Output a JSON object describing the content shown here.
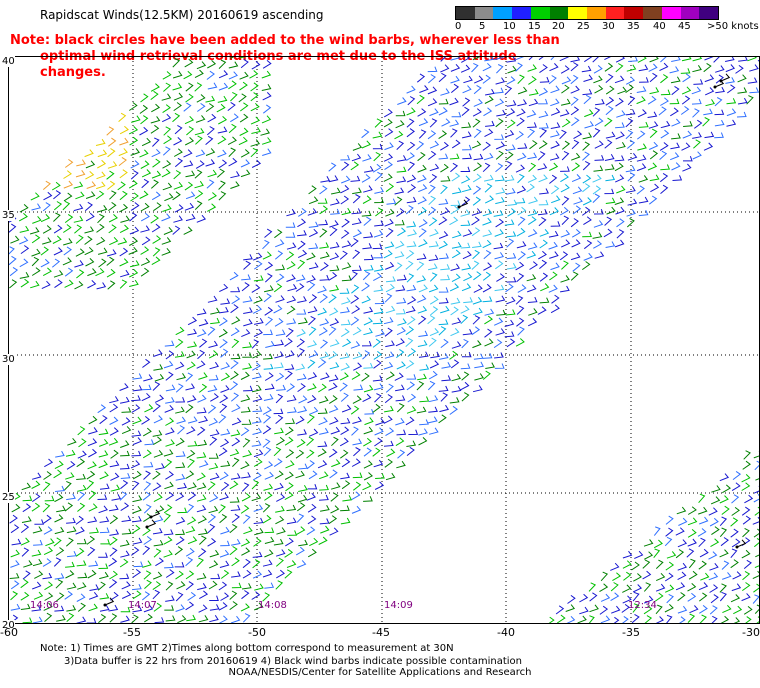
{
  "title": "Rapidscat Winds(12.5KM) 20160619  ascending",
  "note": {
    "line1": "Note: black circles have been added to the wind barbs, wherever less than",
    "line2": "optimal wind retrieval conditions are met due to the ISS attitude changes."
  },
  "colorbar": {
    "colors": [
      "#303030",
      "#8c8c8c",
      "#00a0ff",
      "#2020ff",
      "#00d000",
      "#008000",
      "#ffff00",
      "#ffa000",
      "#ff2020",
      "#c00000",
      "#804020",
      "#ff00ff",
      "#a000c0",
      "#400080"
    ],
    "labels": [
      "0",
      "5",
      "10",
      "15",
      "20",
      "25",
      "30",
      "35",
      "40",
      "45",
      ">50 knots"
    ]
  },
  "axes": {
    "lat_labels": [
      "40",
      "35",
      "30",
      "25",
      "20"
    ],
    "lon_labels": [
      "-60",
      "-55",
      "-50",
      "-45",
      "-40",
      "-35",
      "-30"
    ]
  },
  "time_labels": [
    "14:06",
    "14:07",
    "14:08",
    "14:09",
    "12:34"
  ],
  "footnote": {
    "line1": "Note: 1) Times are GMT 2)Times along bottom correspond to measurement at 30N",
    "line2": "3)Data buffer is 22 hrs from 20160619 4) Black wind barbs indicate possible contamination"
  },
  "credit": "NOAA/NESDIS/Center for Satellite Applications and Research"
}
